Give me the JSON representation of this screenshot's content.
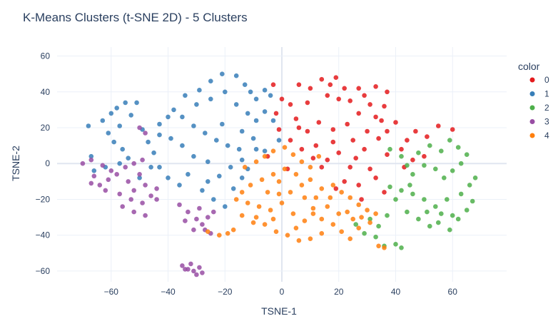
{
  "chart_data": {
    "type": "scatter",
    "title": "K-Means Clusters (t-SNE 2D) - 5 Clusters",
    "xlabel": "TSNE-1",
    "ylabel": "TSNE-2",
    "xlim": [
      -79,
      79
    ],
    "ylim": [
      -66,
      65
    ],
    "xticks": [
      -60,
      -40,
      -20,
      0,
      20,
      40,
      60
    ],
    "yticks": [
      -60,
      -40,
      -20,
      0,
      20,
      40,
      60
    ],
    "xtick_labels": [
      "−60",
      "−40",
      "−20",
      "0",
      "20",
      "40",
      "60"
    ],
    "ytick_labels": [
      "−60",
      "−40",
      "−20",
      "0",
      "20",
      "40",
      "60"
    ],
    "grid": true,
    "legend_title": "color",
    "legend_position": "right",
    "series": [
      {
        "name": "0",
        "color": "#e41a1c",
        "points": [
          [
            -3,
            44
          ],
          [
            0,
            36
          ],
          [
            -2,
            28
          ],
          [
            3,
            33
          ],
          [
            5,
            25
          ],
          [
            -1,
            19
          ],
          [
            3,
            13
          ],
          [
            6,
            44
          ],
          [
            10,
            42
          ],
          [
            9,
            34
          ],
          [
            14,
            47
          ],
          [
            17,
            44
          ],
          [
            19,
            48
          ],
          [
            22,
            42
          ],
          [
            16,
            38
          ],
          [
            20,
            36
          ],
          [
            24,
            35
          ],
          [
            27,
            42
          ],
          [
            29,
            38
          ],
          [
            31,
            33
          ],
          [
            33,
            43
          ],
          [
            37,
            40
          ],
          [
            36,
            32
          ],
          [
            33,
            26
          ],
          [
            27,
            28
          ],
          [
            23,
            22
          ],
          [
            18,
            19
          ],
          [
            13,
            23
          ],
          [
            9,
            18
          ],
          [
            7,
            8
          ],
          [
            11,
            3
          ],
          [
            14,
            -2
          ],
          [
            16,
            2
          ],
          [
            20,
            6
          ],
          [
            24,
            -2
          ],
          [
            26,
            3
          ],
          [
            29,
            8
          ],
          [
            31,
            -3
          ],
          [
            22,
            -10
          ],
          [
            27,
            -12
          ],
          [
            33,
            -8
          ],
          [
            34,
            14
          ],
          [
            37,
            18
          ],
          [
            40,
            23
          ],
          [
            44,
            13
          ],
          [
            47,
            18
          ],
          [
            51,
            15
          ],
          [
            55,
            21
          ],
          [
            60,
            19
          ],
          [
            37,
            5
          ],
          [
            42,
            8
          ],
          [
            46,
            2
          ],
          [
            50,
            4
          ],
          [
            43,
            -2
          ],
          [
            30,
            18
          ],
          [
            35,
            24
          ],
          [
            25,
            13
          ],
          [
            18,
            12
          ],
          [
            12,
            10
          ],
          [
            6,
            20
          ],
          [
            2,
            -3
          ],
          [
            -5,
            4
          ],
          [
            19,
            -14
          ],
          [
            28,
            -20
          ],
          [
            36,
            -16
          ]
        ]
      },
      {
        "name": "1",
        "color": "#377eb8",
        "points": [
          [
            -68,
            21
          ],
          [
            -63,
            24
          ],
          [
            -60,
            28
          ],
          [
            -58,
            31
          ],
          [
            -55,
            34
          ],
          [
            -51,
            34
          ],
          [
            -53,
            27
          ],
          [
            -57,
            21
          ],
          [
            -61,
            17
          ],
          [
            -59,
            12
          ],
          [
            -56,
            8
          ],
          [
            -54,
            3
          ],
          [
            -57,
            0
          ],
          [
            -62,
            -2
          ],
          [
            -67,
            4
          ],
          [
            -66,
            -4
          ],
          [
            -49,
            19
          ],
          [
            -47,
            12
          ],
          [
            -45,
            6
          ],
          [
            -43,
            -2
          ],
          [
            -40,
            -8
          ],
          [
            -36,
            -12
          ],
          [
            -33,
            -6
          ],
          [
            -40,
            26
          ],
          [
            -43,
            22
          ],
          [
            -38,
            30
          ],
          [
            -35,
            26
          ],
          [
            -31,
            21
          ],
          [
            -27,
            17
          ],
          [
            -23,
            13
          ],
          [
            -19,
            10
          ],
          [
            -15,
            8
          ],
          [
            -25,
            36
          ],
          [
            -29,
            41
          ],
          [
            -25,
            46
          ],
          [
            -21,
            50
          ],
          [
            -16,
            49
          ],
          [
            -13,
            44
          ],
          [
            -11,
            40
          ],
          [
            -9,
            36
          ],
          [
            -6,
            41
          ],
          [
            -4,
            38
          ],
          [
            -20,
            40
          ],
          [
            -16,
            33
          ],
          [
            -12,
            28
          ],
          [
            -9,
            24
          ],
          [
            -6,
            29
          ],
          [
            -3,
            24
          ],
          [
            -1,
            13
          ],
          [
            -6,
            7
          ],
          [
            -10,
            14
          ],
          [
            -14,
            2
          ],
          [
            -18,
            -2
          ],
          [
            -22,
            -7
          ],
          [
            -26,
            -10
          ],
          [
            -28,
            -15
          ],
          [
            -24,
            -20
          ],
          [
            -20,
            -24
          ],
          [
            -17,
            -14
          ],
          [
            -14,
            -8
          ],
          [
            -12,
            -3
          ],
          [
            -9,
            8
          ],
          [
            -31,
            4
          ],
          [
            -35,
            10
          ],
          [
            -39,
            14
          ],
          [
            -43,
            16
          ],
          [
            -30,
            33
          ],
          [
            -34,
            38
          ],
          [
            -46,
            -2
          ],
          [
            -50,
            -8
          ],
          [
            -26,
            1
          ],
          [
            -21,
            22
          ],
          [
            -14,
            18
          ]
        ]
      },
      {
        "name": "2",
        "color": "#4daf4a",
        "points": [
          [
            38,
            8
          ],
          [
            42,
            4
          ],
          [
            44,
            -1
          ],
          [
            48,
            6
          ],
          [
            52,
            10
          ],
          [
            56,
            7
          ],
          [
            59,
            13
          ],
          [
            62,
            9
          ],
          [
            65,
            5
          ],
          [
            63,
            0
          ],
          [
            60,
            -4
          ],
          [
            57,
            -8
          ],
          [
            54,
            -3
          ],
          [
            50,
            -1
          ],
          [
            46,
            -6
          ],
          [
            38,
            -13
          ],
          [
            42,
            -15
          ],
          [
            45,
            -12
          ],
          [
            40,
            -20
          ],
          [
            44,
            -27
          ],
          [
            48,
            -31
          ],
          [
            51,
            -27
          ],
          [
            55,
            -33
          ],
          [
            59,
            -37
          ],
          [
            62,
            -31
          ],
          [
            65,
            -26
          ],
          [
            67,
            -21
          ],
          [
            63,
            -17
          ],
          [
            58,
            -20
          ],
          [
            54,
            -24
          ],
          [
            50,
            -20
          ],
          [
            46,
            -17
          ],
          [
            31,
            -31
          ],
          [
            34,
            -35
          ],
          [
            37,
            -29
          ],
          [
            29,
            -39
          ],
          [
            33,
            -41
          ],
          [
            40,
            -45
          ],
          [
            42,
            -47
          ],
          [
            36,
            -46
          ],
          [
            26,
            -34
          ],
          [
            60,
            -29
          ],
          [
            56,
            -28
          ],
          [
            52,
            -35
          ],
          [
            66,
            -12
          ],
          [
            68,
            -8
          ]
        ]
      },
      {
        "name": "3",
        "color": "#984ea3",
        "points": [
          [
            -70,
            0
          ],
          [
            -67,
            2
          ],
          [
            -63,
            -1
          ],
          [
            -60,
            -4
          ],
          [
            -66,
            -7
          ],
          [
            -64,
            -12
          ],
          [
            -61,
            -9
          ],
          [
            -58,
            -6
          ],
          [
            -55,
            -2
          ],
          [
            -52,
            0
          ],
          [
            -49,
            2
          ],
          [
            -50,
            -6
          ],
          [
            -54,
            -10
          ],
          [
            -52,
            -15
          ],
          [
            -48,
            -12
          ],
          [
            -46,
            -18
          ],
          [
            -49,
            -22
          ],
          [
            -53,
            -20
          ],
          [
            -56,
            -24
          ],
          [
            -52,
            -27
          ],
          [
            -48,
            -29
          ],
          [
            -44,
            -20
          ],
          [
            -44,
            -14
          ],
          [
            -57,
            -17
          ],
          [
            -67,
            -11
          ],
          [
            -62,
            -15
          ],
          [
            -50,
            20
          ],
          [
            -48,
            17
          ],
          [
            -36,
            -23
          ],
          [
            -33,
            -27
          ],
          [
            -30,
            -31
          ],
          [
            -28,
            -34
          ],
          [
            -31,
            -37
          ],
          [
            -26,
            -30
          ],
          [
            -24,
            -27
          ],
          [
            -29,
            -25
          ],
          [
            -27,
            -37
          ],
          [
            -34,
            -32
          ],
          [
            -25,
            -39
          ],
          [
            -35,
            -57
          ],
          [
            -33,
            -59
          ],
          [
            -31,
            -60
          ],
          [
            -29,
            -58
          ],
          [
            -32,
            -56
          ],
          [
            -34,
            -59
          ],
          [
            -30,
            -62
          ],
          [
            -28,
            -61
          ]
        ]
      },
      {
        "name": "4",
        "color": "#ff7f0e",
        "points": [
          [
            -13,
            -2
          ],
          [
            -9,
            1
          ],
          [
            -6,
            4
          ],
          [
            -3,
            7
          ],
          [
            1,
            9
          ],
          [
            4,
            5
          ],
          [
            7,
            1
          ],
          [
            10,
            -2
          ],
          [
            13,
            4
          ],
          [
            5,
            -6
          ],
          [
            1,
            -3
          ],
          [
            -3,
            -6
          ],
          [
            -7,
            -9
          ],
          [
            -11,
            -12
          ],
          [
            -14,
            -16
          ],
          [
            -16,
            -20
          ],
          [
            -12,
            -22
          ],
          [
            -8,
            -24
          ],
          [
            -4,
            -26
          ],
          [
            0,
            -22
          ],
          [
            3,
            -16
          ],
          [
            7,
            -12
          ],
          [
            10,
            -9
          ],
          [
            14,
            -14
          ],
          [
            18,
            -12
          ],
          [
            21,
            -16
          ],
          [
            24,
            -19
          ],
          [
            27,
            -23
          ],
          [
            30,
            -26
          ],
          [
            33,
            -28
          ],
          [
            31,
            -33
          ],
          [
            27,
            -36
          ],
          [
            24,
            -42
          ],
          [
            21,
            -38
          ],
          [
            18,
            -34
          ],
          [
            14,
            -31
          ],
          [
            11,
            -28
          ],
          [
            8,
            -32
          ],
          [
            5,
            -36
          ],
          [
            2,
            -40
          ],
          [
            6,
            -43
          ],
          [
            10,
            -42
          ],
          [
            14,
            -39
          ],
          [
            -2,
            -38
          ],
          [
            -6,
            -34
          ],
          [
            -10,
            -33
          ],
          [
            -14,
            -29
          ],
          [
            -17,
            -37
          ],
          [
            -19,
            -39
          ],
          [
            -22,
            -40
          ],
          [
            -26,
            -38
          ],
          [
            16,
            -24
          ],
          [
            20,
            -28
          ],
          [
            12,
            -19
          ],
          [
            -1,
            -10
          ],
          [
            -5,
            -16
          ],
          [
            -9,
            -30
          ],
          [
            -3,
            -31
          ],
          [
            25,
            -31
          ],
          [
            23,
            -27
          ],
          [
            8,
            -19
          ],
          [
            4,
            -28
          ],
          [
            -1,
            -17
          ],
          [
            17,
            -19
          ],
          [
            11,
            -25
          ],
          [
            28,
            -30
          ],
          [
            36,
            -47
          ],
          [
            34,
            -46
          ]
        ]
      }
    ]
  }
}
